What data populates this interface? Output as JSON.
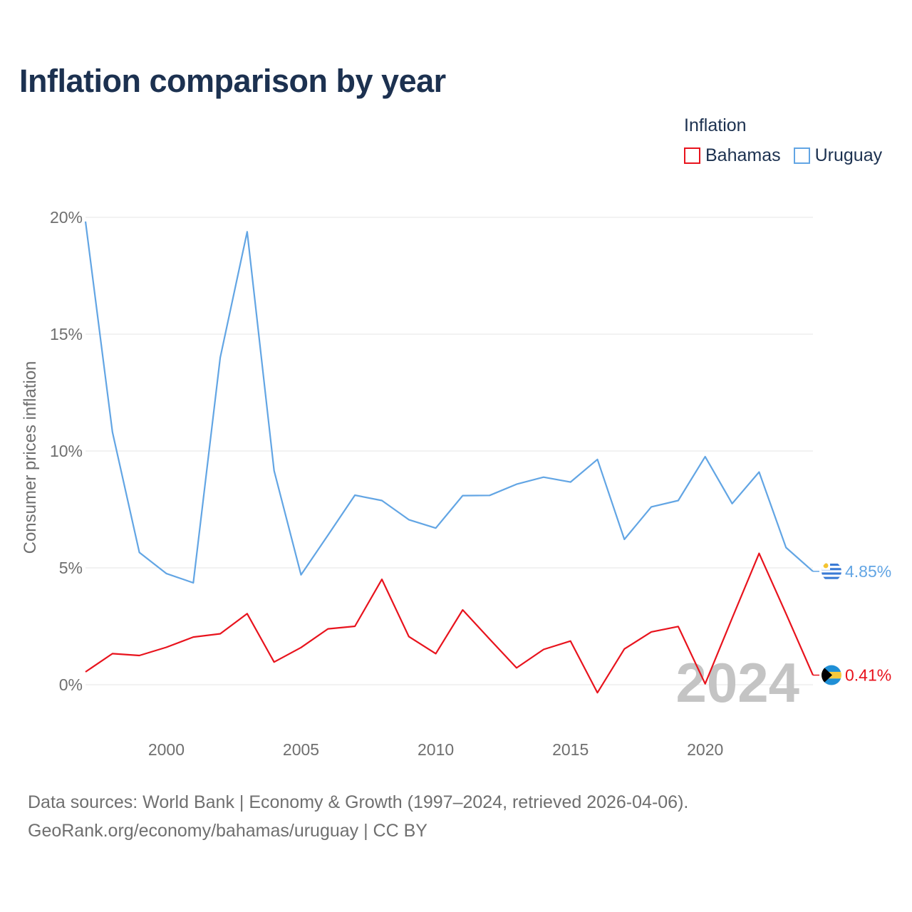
{
  "title": "Inflation comparison by year",
  "legend": {
    "title": "Inflation",
    "items": [
      {
        "label": "Bahamas",
        "color": "#e8131d"
      },
      {
        "label": "Uruguay",
        "color": "#62a5e4"
      }
    ]
  },
  "footer": {
    "line1": "Data sources: World Bank | Economy & Growth (1997–2024, retrieved 2026-04-06).",
    "line2": "GeoRank.org/economy/bahamas/uruguay | CC BY"
  },
  "chart_data": {
    "type": "line",
    "title": "Inflation comparison by year",
    "xlabel": "",
    "ylabel": "Consumer prices inflation",
    "xlim": [
      1997,
      2024
    ],
    "ylim": [
      0,
      20
    ],
    "x_ticks": [
      2000,
      2005,
      2010,
      2015,
      2020
    ],
    "y_ticks": [
      0,
      5,
      10,
      15,
      20
    ],
    "y_tick_labels": [
      "0%",
      "5%",
      "10%",
      "15%",
      "20%"
    ],
    "watermark_year": "2024",
    "x": [
      1997,
      1998,
      1999,
      2000,
      2001,
      2002,
      2003,
      2004,
      2005,
      2006,
      2007,
      2008,
      2009,
      2010,
      2011,
      2012,
      2013,
      2014,
      2015,
      2016,
      2017,
      2018,
      2019,
      2020,
      2021,
      2022,
      2023,
      2024
    ],
    "series": [
      {
        "name": "Uruguay",
        "color": "#62a5e4",
        "values": [
          19.82,
          10.81,
          5.66,
          4.76,
          4.36,
          14.0,
          19.38,
          9.16,
          4.7,
          6.4,
          8.11,
          7.88,
          7.06,
          6.7,
          8.09,
          8.1,
          8.58,
          8.88,
          8.67,
          9.64,
          6.22,
          7.61,
          7.88,
          9.76,
          7.75,
          9.1,
          5.87,
          4.85
        ],
        "end_label": "4.85%"
      },
      {
        "name": "Bahamas",
        "color": "#e8131d",
        "values": [
          0.55,
          1.33,
          1.25,
          1.6,
          2.04,
          2.18,
          3.04,
          0.97,
          1.59,
          2.39,
          2.5,
          4.51,
          2.06,
          1.33,
          3.2,
          1.95,
          0.72,
          1.51,
          1.87,
          -0.34,
          1.53,
          2.26,
          2.49,
          0.04,
          2.85,
          5.62,
          3.04,
          0.41
        ],
        "end_label": "0.41%"
      }
    ]
  }
}
